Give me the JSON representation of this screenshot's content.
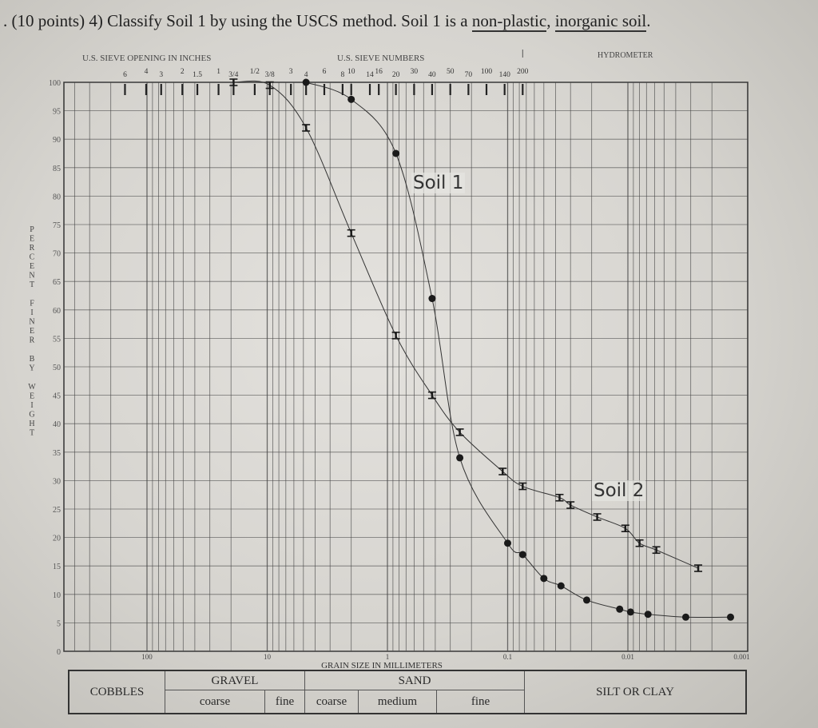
{
  "question": {
    "prefix": ". (10 points) 4) Classify Soil 1 by using the USCS method. Soil 1 is a ",
    "underlined_1": "non-plastic",
    "sep": ", ",
    "underlined_2": "inorganic soil",
    "suffix": "."
  },
  "chart_data": {
    "type": "line",
    "title": "",
    "xlabel": "GRAIN SIZE IN MILLIMETERS",
    "ylabel": "PERCENT FINER BY WEIGHT",
    "x_scale": "log",
    "x_reversed": true,
    "xlim": [
      500,
      0.001
    ],
    "ylim": [
      0,
      100
    ],
    "grid": true,
    "x_tick_labels": [
      {
        "value": 100,
        "label": "100"
      },
      {
        "value": 10,
        "label": "10"
      },
      {
        "value": 1,
        "label": "1"
      },
      {
        "value": 0.1,
        "label": "0.1"
      },
      {
        "value": 0.01,
        "label": "0.01"
      },
      {
        "value": 0.001,
        "label": "0.001"
      }
    ],
    "y_ticks": [
      0,
      5,
      10,
      15,
      20,
      25,
      30,
      35,
      40,
      45,
      50,
      55,
      60,
      65,
      70,
      75,
      80,
      85,
      90,
      95,
      100
    ],
    "top_axis": {
      "inches_title": "U.S. SIEVE OPENING IN INCHES",
      "numbers_title": "U.S. SIEVE NUMBERS",
      "hydrometer_title": "HYDROMETER",
      "sieves": [
        {
          "label": "6",
          "mm": 152.4
        },
        {
          "label": "4",
          "mm": 101.6
        },
        {
          "label": "3",
          "mm": 76.2
        },
        {
          "label": "2",
          "mm": 50.8
        },
        {
          "label": "1.5",
          "mm": 38.1
        },
        {
          "label": "1",
          "mm": 25.4
        },
        {
          "label": "3/4",
          "mm": 19.05
        },
        {
          "label": "1/2",
          "mm": 12.7
        },
        {
          "label": "3/8",
          "mm": 9.525
        },
        {
          "label": "3",
          "mm": 6.35
        },
        {
          "label": "4",
          "mm": 4.75
        },
        {
          "label": "6",
          "mm": 3.35
        },
        {
          "label": "8",
          "mm": 2.36
        },
        {
          "label": "10",
          "mm": 2.0
        },
        {
          "label": "14",
          "mm": 1.4
        },
        {
          "label": "16",
          "mm": 1.18
        },
        {
          "label": "20",
          "mm": 0.85
        },
        {
          "label": "30",
          "mm": 0.6
        },
        {
          "label": "40",
          "mm": 0.425
        },
        {
          "label": "50",
          "mm": 0.3
        },
        {
          "label": "70",
          "mm": 0.212
        },
        {
          "label": "100",
          "mm": 0.15
        },
        {
          "label": "140",
          "mm": 0.106
        },
        {
          "label": "200",
          "mm": 0.075
        }
      ]
    },
    "series": [
      {
        "name": "Soil 1",
        "marker": "filled-circle",
        "points": [
          [
            4.75,
            100
          ],
          [
            2.0,
            97
          ],
          [
            0.85,
            87.5
          ],
          [
            0.425,
            62
          ],
          [
            0.25,
            34
          ],
          [
            0.1,
            19
          ],
          [
            0.075,
            17
          ],
          [
            0.05,
            12.8
          ],
          [
            0.036,
            11.5
          ],
          [
            0.022,
            9
          ],
          [
            0.0117,
            7.4
          ],
          [
            0.0095,
            6.9
          ],
          [
            0.0068,
            6.5
          ],
          [
            0.0033,
            6
          ],
          [
            0.0014,
            6
          ]
        ]
      },
      {
        "name": "Soil 2",
        "marker": "error-bar",
        "points": [
          [
            19.05,
            100
          ],
          [
            9.525,
            99.5
          ],
          [
            4.75,
            92
          ],
          [
            2.0,
            73.5
          ],
          [
            0.85,
            55.5
          ],
          [
            0.425,
            45
          ],
          [
            0.25,
            38.5
          ],
          [
            0.11,
            31.6
          ],
          [
            0.075,
            29
          ],
          [
            0.037,
            27
          ],
          [
            0.03,
            25.7
          ],
          [
            0.018,
            23.6
          ],
          [
            0.0105,
            21.6
          ],
          [
            0.008,
            19
          ],
          [
            0.0058,
            17.8
          ],
          [
            0.0026,
            14.6
          ]
        ]
      }
    ]
  },
  "classification_table": {
    "cobbles": "COBBLES",
    "gravel": "GRAVEL",
    "gravel_coarse": "coarse",
    "gravel_fine": "fine",
    "sand": "SAND",
    "sand_coarse": "coarse",
    "sand_medium": "medium",
    "sand_fine": "fine",
    "silt_clay": "SILT OR CLAY"
  },
  "colors": {
    "ink": "#2a2a2a",
    "grid": "#3a3a3a",
    "paper": "#dcdad5"
  }
}
